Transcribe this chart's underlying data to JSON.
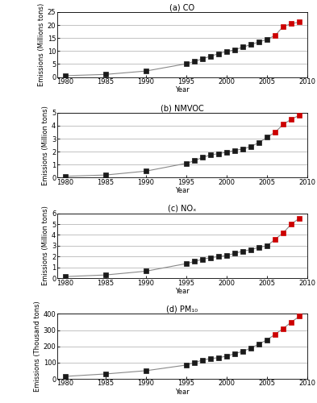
{
  "panels": [
    {
      "title": "(a) CO",
      "ylabel": "Emissions (Millions tons)",
      "ylim": [
        0,
        25
      ],
      "yticks": [
        0,
        5,
        10,
        15,
        20,
        25
      ],
      "years_black": [
        1980,
        1985,
        1990,
        1995,
        1996,
        1997,
        1998,
        1999,
        2000,
        2001,
        2002,
        2003,
        2004,
        2005
      ],
      "values_black": [
        0.5,
        1.0,
        2.3,
        5.1,
        6.0,
        7.0,
        8.0,
        9.0,
        9.8,
        10.5,
        11.5,
        12.5,
        13.5,
        14.5
      ],
      "years_red": [
        2005,
        2006,
        2007,
        2008,
        2009
      ],
      "values_red": [
        14.5,
        16.0,
        19.5,
        20.5,
        21.2
      ]
    },
    {
      "title": "(b) NMVOC",
      "ylabel": "Emissions (Million tons)",
      "ylim": [
        0,
        5
      ],
      "yticks": [
        0,
        1,
        2,
        3,
        4,
        5
      ],
      "years_black": [
        1980,
        1985,
        1990,
        1995,
        1996,
        1997,
        1998,
        1999,
        2000,
        2001,
        2002,
        2003,
        2004,
        2005
      ],
      "values_black": [
        0.1,
        0.2,
        0.5,
        1.1,
        1.3,
        1.55,
        1.75,
        1.85,
        1.95,
        2.1,
        2.2,
        2.4,
        2.7,
        3.1
      ],
      "years_red": [
        2005,
        2006,
        2007,
        2008,
        2009
      ],
      "values_red": [
        3.1,
        3.5,
        4.1,
        4.5,
        4.8
      ]
    },
    {
      "title": "(c) NOₓ",
      "ylabel": "Emissions (Million tons)",
      "ylim": [
        0,
        6
      ],
      "yticks": [
        0,
        1,
        2,
        3,
        4,
        5,
        6
      ],
      "years_black": [
        1980,
        1985,
        1990,
        1995,
        1996,
        1997,
        1998,
        1999,
        2000,
        2001,
        2002,
        2003,
        2004,
        2005
      ],
      "values_black": [
        0.15,
        0.3,
        0.65,
        1.35,
        1.55,
        1.75,
        1.9,
        2.0,
        2.1,
        2.3,
        2.5,
        2.65,
        2.85,
        3.0
      ],
      "years_red": [
        2005,
        2006,
        2007,
        2008,
        2009
      ],
      "values_red": [
        3.0,
        3.6,
        4.2,
        5.0,
        5.55
      ]
    },
    {
      "title": "(d) PM₁₀",
      "ylabel": "Emissions (Thousand tons)",
      "ylim": [
        0,
        400
      ],
      "yticks": [
        0,
        100,
        200,
        300,
        400
      ],
      "years_black": [
        1980,
        1985,
        1990,
        1995,
        1996,
        1997,
        1998,
        1999,
        2000,
        2001,
        2002,
        2003,
        2004,
        2005
      ],
      "values_black": [
        15,
        30,
        50,
        85,
        100,
        115,
        125,
        130,
        140,
        155,
        170,
        190,
        215,
        240
      ],
      "years_red": [
        2005,
        2006,
        2007,
        2008,
        2009
      ],
      "values_red": [
        240,
        275,
        310,
        350,
        385
      ]
    }
  ],
  "xlim": [
    1979,
    2010
  ],
  "xticks": [
    1980,
    1985,
    1990,
    1995,
    2000,
    2005,
    2010
  ],
  "xlabel": "Year",
  "black_color": "#1a1a1a",
  "red_color": "#cc0000",
  "marker_size": 4,
  "line_color": "#888888",
  "bg_color": "#ffffff",
  "grid_color": "#aaaaaa",
  "title_fontsize": 7,
  "label_fontsize": 6,
  "tick_fontsize": 6
}
